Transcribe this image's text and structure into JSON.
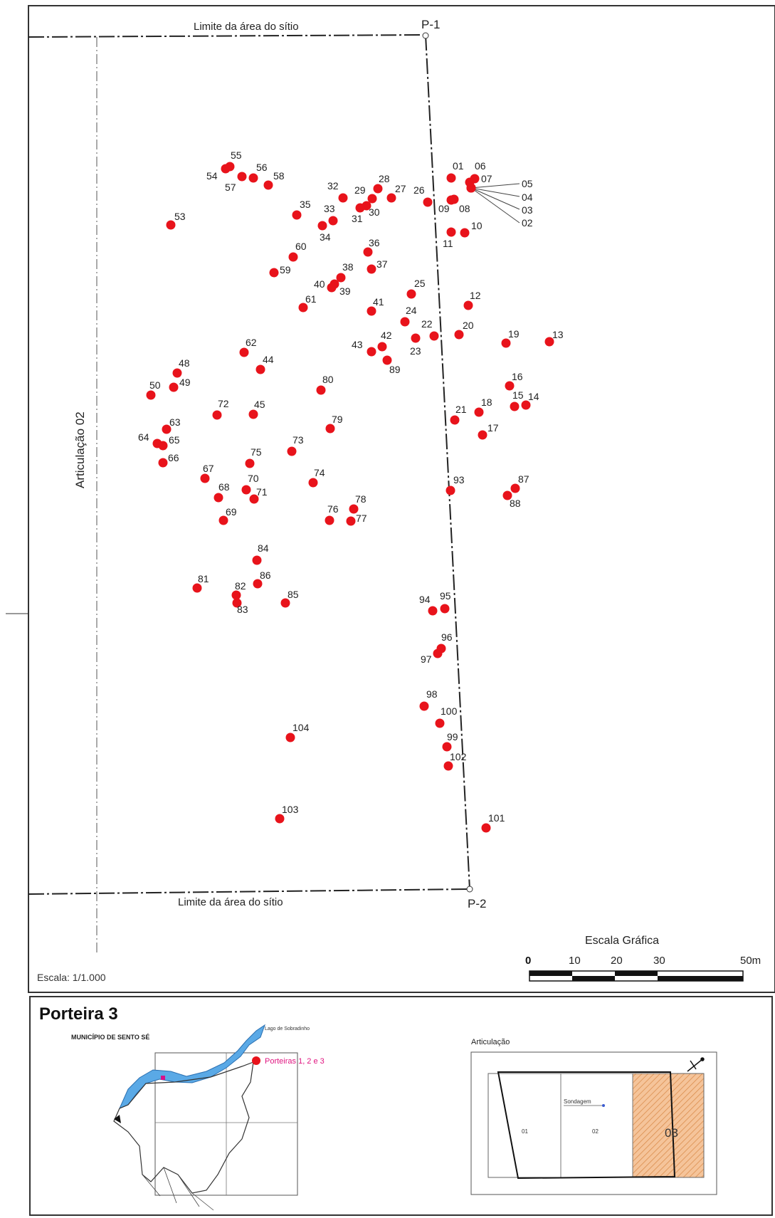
{
  "map": {
    "boundary_top_label": "Limite da área do sítio",
    "boundary_bottom_label": "Limite da área do sítio",
    "corner_p1": "P-1",
    "corner_p2": "P-2",
    "articulation_left_label": "Articulação 02",
    "scale_text": "Escala: 1/1.000",
    "scale_bar_title": "Escala Gráfica",
    "scale_bar_ticks": [
      "0",
      "10",
      "20",
      "30",
      "50m"
    ],
    "point_color": "#e8131b",
    "points": [
      {
        "id": "01"
      },
      {
        "id": "02"
      },
      {
        "id": "03"
      },
      {
        "id": "04"
      },
      {
        "id": "05"
      },
      {
        "id": "06"
      },
      {
        "id": "07"
      },
      {
        "id": "08"
      },
      {
        "id": "09"
      },
      {
        "id": "10"
      },
      {
        "id": "11"
      },
      {
        "id": "12"
      },
      {
        "id": "13"
      },
      {
        "id": "14"
      },
      {
        "id": "15"
      },
      {
        "id": "16"
      },
      {
        "id": "17"
      },
      {
        "id": "18"
      },
      {
        "id": "19"
      },
      {
        "id": "20"
      },
      {
        "id": "21"
      },
      {
        "id": "22"
      },
      {
        "id": "23"
      },
      {
        "id": "24"
      },
      {
        "id": "25"
      },
      {
        "id": "26"
      },
      {
        "id": "27"
      },
      {
        "id": "28"
      },
      {
        "id": "29"
      },
      {
        "id": "30"
      },
      {
        "id": "31"
      },
      {
        "id": "32"
      },
      {
        "id": "33"
      },
      {
        "id": "34"
      },
      {
        "id": "35"
      },
      {
        "id": "36"
      },
      {
        "id": "37"
      },
      {
        "id": "38"
      },
      {
        "id": "39"
      },
      {
        "id": "40"
      },
      {
        "id": "41"
      },
      {
        "id": "42"
      },
      {
        "id": "43"
      },
      {
        "id": "44"
      },
      {
        "id": "45"
      },
      {
        "id": "48"
      },
      {
        "id": "49"
      },
      {
        "id": "50"
      },
      {
        "id": "53"
      },
      {
        "id": "54"
      },
      {
        "id": "55"
      },
      {
        "id": "56"
      },
      {
        "id": "57"
      },
      {
        "id": "58"
      },
      {
        "id": "59"
      },
      {
        "id": "60"
      },
      {
        "id": "61"
      },
      {
        "id": "62"
      },
      {
        "id": "63"
      },
      {
        "id": "64"
      },
      {
        "id": "65"
      },
      {
        "id": "66"
      },
      {
        "id": "67"
      },
      {
        "id": "68"
      },
      {
        "id": "69"
      },
      {
        "id": "70"
      },
      {
        "id": "71"
      },
      {
        "id": "72"
      },
      {
        "id": "73"
      },
      {
        "id": "74"
      },
      {
        "id": "75"
      },
      {
        "id": "76"
      },
      {
        "id": "77"
      },
      {
        "id": "78"
      },
      {
        "id": "79"
      },
      {
        "id": "80"
      },
      {
        "id": "81"
      },
      {
        "id": "82"
      },
      {
        "id": "83"
      },
      {
        "id": "84"
      },
      {
        "id": "85"
      },
      {
        "id": "86"
      },
      {
        "id": "87"
      },
      {
        "id": "88"
      },
      {
        "id": "89"
      },
      {
        "id": "93"
      },
      {
        "id": "94"
      },
      {
        "id": "95"
      },
      {
        "id": "96"
      },
      {
        "id": "97"
      },
      {
        "id": "98"
      },
      {
        "id": "99"
      },
      {
        "id": "100"
      },
      {
        "id": "101"
      },
      {
        "id": "102"
      },
      {
        "id": "103"
      },
      {
        "id": "104"
      }
    ]
  },
  "legend": {
    "title": "Porteira 3",
    "municipality": "MUNICÍPIO DE SENTO SÉ",
    "lake_label": "Lago de Sobradinho",
    "porteiras_label": "Porteiras 1, 2 e 3",
    "articulation_title": "Articulação",
    "sheets": [
      "01",
      "02",
      "03"
    ],
    "sondagem_label": "Sondagem",
    "lake_color": "#5aa9e6",
    "highlight_color": "#f5c49a"
  }
}
